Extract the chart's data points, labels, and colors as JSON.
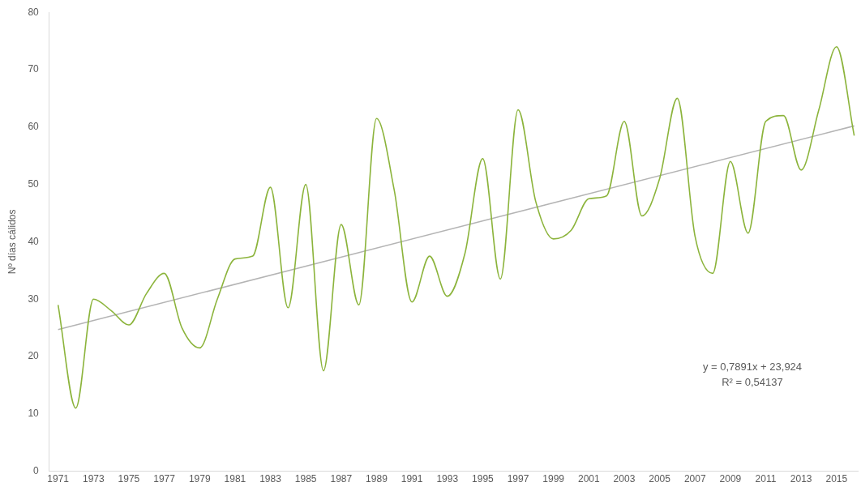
{
  "chart_data": {
    "type": "line",
    "ylabel": "Nº días cálidos",
    "x": [
      1971,
      1972,
      1973,
      1974,
      1975,
      1976,
      1977,
      1978,
      1979,
      1980,
      1981,
      1982,
      1983,
      1984,
      1985,
      1986,
      1987,
      1988,
      1989,
      1990,
      1991,
      1992,
      1993,
      1994,
      1995,
      1996,
      1997,
      1998,
      1999,
      2000,
      2001,
      2002,
      2003,
      2004,
      2005,
      2006,
      2007,
      2008,
      2009,
      2010,
      2011,
      2012,
      2013,
      2014,
      2015,
      2016
    ],
    "series": [
      {
        "color": "#8cb43c",
        "values": [
          29,
          11,
          30,
          28,
          25.5,
          31,
          34.5,
          25,
          21.5,
          30,
          37,
          37.5,
          49.5,
          28.5,
          50,
          17.5,
          43,
          29,
          61.5,
          49,
          29.5,
          37.5,
          30.5,
          38,
          54.5,
          33.5,
          63,
          47,
          40.5,
          42,
          47.5,
          48,
          61,
          44.5,
          51,
          65,
          41,
          34.5,
          54,
          41.5,
          61,
          62,
          52.5,
          63,
          74,
          58.5
        ]
      },
      {
        "color": "#b4b4b4",
        "x": [
          1971,
          2016
        ],
        "values": [
          24.7,
          60.2
        ]
      }
    ],
    "xlim": [
      1970.5,
      2016.2
    ],
    "xticks": [
      1971,
      1973,
      1975,
      1977,
      1979,
      1981,
      1983,
      1985,
      1987,
      1989,
      1991,
      1993,
      1995,
      1997,
      1999,
      2001,
      2003,
      2005,
      2007,
      2009,
      2011,
      2013,
      2015
    ],
    "ylim": [
      0,
      80
    ],
    "yticks": [
      0,
      10,
      20,
      30,
      40,
      50,
      60,
      70,
      80
    ],
    "grid": false,
    "legend": false,
    "marker": "none",
    "line_style": "solid",
    "annotations": [
      "y = 0,7891x + 23,924",
      "R² = 0,54137"
    ]
  }
}
